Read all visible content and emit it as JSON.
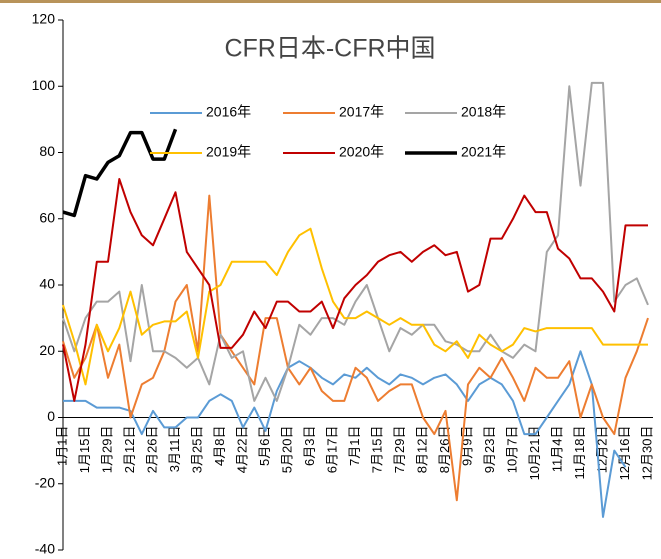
{
  "chart_data": {
    "type": "line",
    "title": "CFR日本-CFR中国",
    "categories": [
      "1月1日",
      null,
      "1月15日",
      null,
      "1月29日",
      null,
      "2月12日",
      null,
      "2月26日",
      null,
      "3月11日",
      null,
      "3月25日",
      null,
      "4月8日",
      null,
      "4月22日",
      null,
      "5月6日",
      null,
      "5月20日",
      null,
      "6月3日",
      null,
      "6月17日",
      null,
      "7月1日",
      null,
      "7月15日",
      null,
      "7月29日",
      null,
      "8月12日",
      null,
      "8月26日",
      null,
      "9月9日",
      null,
      "9月23日",
      null,
      "10月7日",
      null,
      "10月21日",
      null,
      "11月4日",
      null,
      "11月18日",
      null,
      "12月2日",
      null,
      "12月16日",
      null,
      "12月30日"
    ],
    "series": [
      {
        "name": "2016年",
        "color": "#5b9bd5",
        "values": [
          5,
          5,
          5,
          3,
          3,
          3,
          2,
          -5,
          2,
          -3,
          -3,
          0,
          0,
          5,
          7,
          5,
          -3,
          3,
          -4,
          8,
          15,
          17,
          15,
          12,
          10,
          13,
          12,
          15,
          12,
          10,
          13,
          12,
          10,
          12,
          13,
          10,
          5,
          10,
          12,
          10,
          5,
          -5,
          -5,
          0,
          5,
          10,
          20,
          10,
          -30,
          -10,
          -15,
          null,
          null
        ]
      },
      {
        "name": "2017年",
        "color": "#ed7d31",
        "values": [
          23,
          12,
          18,
          28,
          12,
          22,
          0,
          10,
          12,
          20,
          35,
          40,
          20,
          67,
          25,
          20,
          15,
          10,
          30,
          30,
          15,
          10,
          15,
          8,
          5,
          5,
          15,
          12,
          5,
          8,
          10,
          10,
          0,
          -5,
          2,
          -25,
          10,
          15,
          12,
          18,
          12,
          5,
          15,
          12,
          12,
          17,
          0,
          10,
          0,
          -5,
          12,
          20,
          30
        ]
      },
      {
        "name": "2018年",
        "color": "#a5a5a5",
        "values": [
          30,
          20,
          30,
          35,
          35,
          38,
          17,
          40,
          20,
          20,
          18,
          15,
          18,
          10,
          25,
          18,
          20,
          5,
          12,
          5,
          15,
          28,
          25,
          30,
          30,
          28,
          35,
          40,
          30,
          20,
          27,
          25,
          28,
          28,
          23,
          22,
          20,
          20,
          25,
          20,
          18,
          22,
          20,
          50,
          55,
          100,
          70,
          101,
          101,
          35,
          40,
          42,
          34
        ]
      },
      {
        "name": "2019年",
        "color": "#ffc000",
        "values": [
          34,
          23,
          10,
          28,
          20,
          27,
          38,
          25,
          28,
          29,
          29,
          32,
          18,
          38,
          40,
          47,
          47,
          47,
          47,
          43,
          50,
          55,
          57,
          45,
          35,
          30,
          30,
          32,
          30,
          28,
          30,
          28,
          28,
          22,
          20,
          23,
          18,
          25,
          22,
          20,
          22,
          27,
          26,
          27,
          27,
          27,
          27,
          27,
          22,
          22,
          22,
          22,
          22
        ]
      },
      {
        "name": "2020年",
        "color": "#c00000",
        "values": [
          22,
          5,
          22,
          47,
          47,
          72,
          62,
          55,
          52,
          60,
          68,
          50,
          45,
          40,
          21,
          21,
          25,
          32,
          27,
          35,
          35,
          32,
          32,
          35,
          27,
          36,
          40,
          43,
          47,
          49,
          50,
          47,
          50,
          52,
          49,
          50,
          38,
          40,
          54,
          54,
          60,
          67,
          62,
          62,
          51,
          48,
          42,
          42,
          38,
          32,
          58,
          58,
          58
        ]
      },
      {
        "name": "2021年",
        "color": "#000000",
        "values": [
          62,
          61,
          73,
          72,
          77,
          79,
          86,
          86,
          78,
          78,
          87,
          null,
          null,
          null,
          null,
          null,
          null,
          null,
          null,
          null,
          null,
          null,
          null,
          null,
          null,
          null,
          null,
          null,
          null,
          null,
          null,
          null,
          null,
          null,
          null,
          null,
          null,
          null,
          null,
          null,
          null,
          null,
          null,
          null,
          null,
          null,
          null,
          null,
          null,
          null,
          null,
          null,
          null
        ]
      }
    ],
    "ylim": [
      -40,
      120
    ],
    "yticks": [
      -40,
      -20,
      0,
      20,
      40,
      60,
      80,
      100,
      120
    ]
  }
}
